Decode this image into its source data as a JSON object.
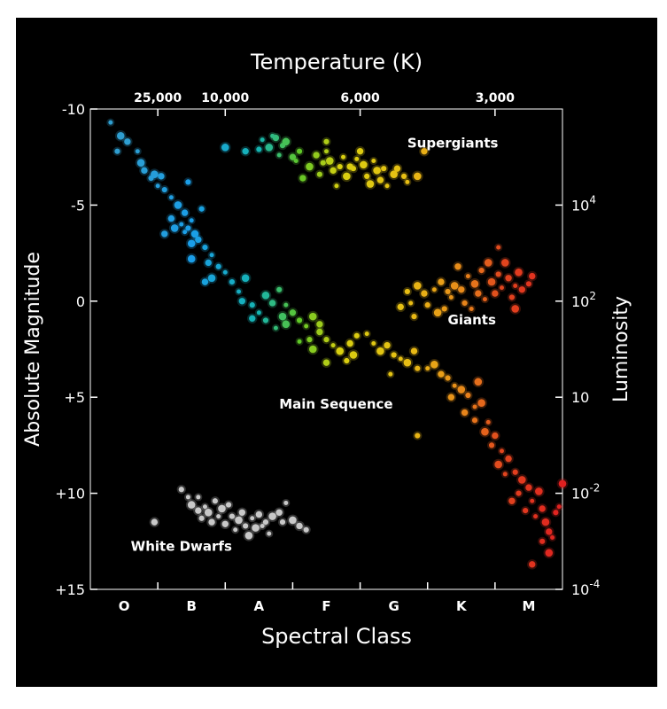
{
  "chart_data": {
    "type": "scatter",
    "title": "",
    "xlabel": "Spectral Class",
    "x2label": "Temperature (K)",
    "ylabel": "Absolute Magnitude",
    "y2label": "Luminosity",
    "categories": [
      "O",
      "B",
      "A",
      "F",
      "G",
      "K",
      "M"
    ],
    "xlim": [
      -0.5,
      6.5
    ],
    "ylim": [
      -10,
      15
    ],
    "y_ticks": [
      {
        "value": -10,
        "label": "-10"
      },
      {
        "value": -5,
        "label": "-5"
      },
      {
        "value": 0,
        "label": "0"
      },
      {
        "value": 5,
        "label": "+5"
      },
      {
        "value": 10,
        "label": "+10"
      },
      {
        "value": 15,
        "label": "+15"
      }
    ],
    "top_ticks": [
      {
        "x": 0.5,
        "label": "25,000"
      },
      {
        "x": 1.5,
        "label": "10,000"
      },
      {
        "x": 3.5,
        "label": "6,000"
      },
      {
        "x": 5.5,
        "label": "3,000"
      }
    ],
    "lum_ticks": [
      {
        "mag": -5,
        "base": "10",
        "exp": "4"
      },
      {
        "mag": 0,
        "base": "10",
        "exp": "2"
      },
      {
        "mag": 5,
        "base": "10",
        "exp": ""
      },
      {
        "mag": 10,
        "base": "10",
        "exp": "-2"
      },
      {
        "mag": 15,
        "base": "10",
        "exp": "-4"
      }
    ],
    "annotations": [
      {
        "text": "Supergiants",
        "x": 4.2,
        "mag": -8.0
      },
      {
        "text": "Giants",
        "x": 4.8,
        "mag": 1.2
      },
      {
        "text": "Main Sequence",
        "x": 2.3,
        "mag": 5.6
      },
      {
        "text": "White Dwarfs",
        "x": 0.1,
        "mag": 13.0
      }
    ],
    "colors": {
      "background": "#000000",
      "text": "#ffffff",
      "O": "#2f9ed0",
      "B": "#1a9ee8",
      "A": "#15b4b0",
      "F": "#6cc82a",
      "G": "#e8c010",
      "K": "#e88a1a",
      "M": "#e02020",
      "white_dwarf": "#c8c8c8"
    },
    "series": [
      {
        "name": "Main Sequence",
        "points": [
          [
            -0.2,
            -9.3
          ],
          [
            -0.05,
            -8.6
          ],
          [
            0.05,
            -8.3
          ],
          [
            -0.1,
            -7.8
          ],
          [
            0.2,
            -7.8
          ],
          [
            0.25,
            -7.2
          ],
          [
            0.3,
            -6.8
          ],
          [
            0.4,
            -6.4
          ],
          [
            0.5,
            -6.0
          ],
          [
            0.45,
            -6.6
          ],
          [
            0.55,
            -6.5
          ],
          [
            0.6,
            -5.8
          ],
          [
            0.7,
            -5.4
          ],
          [
            0.8,
            -5.0
          ],
          [
            0.9,
            -4.6
          ],
          [
            0.95,
            -6.2
          ],
          [
            0.85,
            -4.0
          ],
          [
            0.75,
            -3.8
          ],
          [
            0.7,
            -4.3
          ],
          [
            0.95,
            -3.8
          ],
          [
            1.0,
            -4.2
          ],
          [
            1.05,
            -3.5
          ],
          [
            1.1,
            -3.2
          ],
          [
            1.15,
            -4.8
          ],
          [
            0.9,
            -3.6
          ],
          [
            1.0,
            -3.0
          ],
          [
            0.6,
            -3.5
          ],
          [
            1.2,
            -2.8
          ],
          [
            1.3,
            -2.4
          ],
          [
            1.0,
            -2.2
          ],
          [
            1.25,
            -2.0
          ],
          [
            1.4,
            -1.8
          ],
          [
            1.5,
            -1.5
          ],
          [
            1.3,
            -1.2
          ],
          [
            1.2,
            -1.0
          ],
          [
            1.6,
            -1.0
          ],
          [
            1.7,
            -0.5
          ],
          [
            1.8,
            -1.2
          ],
          [
            1.75,
            0.0
          ],
          [
            1.9,
            0.2
          ],
          [
            2.0,
            0.6
          ],
          [
            2.1,
            -0.3
          ],
          [
            2.2,
            0.1
          ],
          [
            2.3,
            -0.6
          ],
          [
            2.4,
            0.2
          ],
          [
            2.35,
            0.8
          ],
          [
            1.9,
            0.9
          ],
          [
            2.1,
            1.0
          ],
          [
            2.25,
            1.4
          ],
          [
            2.4,
            1.2
          ],
          [
            2.5,
            0.6
          ],
          [
            2.6,
            1.0
          ],
          [
            2.7,
            1.3
          ],
          [
            2.8,
            0.8
          ],
          [
            2.9,
            1.6
          ],
          [
            2.75,
            2.0
          ],
          [
            2.6,
            2.1
          ],
          [
            2.8,
            2.5
          ],
          [
            2.9,
            1.2
          ],
          [
            3.0,
            2.0
          ],
          [
            3.1,
            2.3
          ],
          [
            3.2,
            2.6
          ],
          [
            3.35,
            2.2
          ],
          [
            3.45,
            1.8
          ],
          [
            3.6,
            1.7
          ],
          [
            3.4,
            2.8
          ],
          [
            3.0,
            3.2
          ],
          [
            3.3,
            3.1
          ],
          [
            3.7,
            2.2
          ],
          [
            3.8,
            2.6
          ],
          [
            3.9,
            2.3
          ],
          [
            4.0,
            2.8
          ],
          [
            4.1,
            3.0
          ],
          [
            4.2,
            3.2
          ],
          [
            4.3,
            2.6
          ],
          [
            4.35,
            3.5
          ],
          [
            4.5,
            3.5
          ],
          [
            4.6,
            3.3
          ],
          [
            4.7,
            3.8
          ],
          [
            4.8,
            4.0
          ],
          [
            4.9,
            4.4
          ],
          [
            5.0,
            4.6
          ],
          [
            4.85,
            5.0
          ],
          [
            5.1,
            4.9
          ],
          [
            5.2,
            5.5
          ],
          [
            5.3,
            5.3
          ],
          [
            5.05,
            5.8
          ],
          [
            5.2,
            6.2
          ],
          [
            5.4,
            6.3
          ],
          [
            5.35,
            6.8
          ],
          [
            5.5,
            7.0
          ],
          [
            5.45,
            7.5
          ],
          [
            5.6,
            7.8
          ],
          [
            5.55,
            8.5
          ],
          [
            5.7,
            8.2
          ],
          [
            5.8,
            8.9
          ],
          [
            5.65,
            9.0
          ],
          [
            5.9,
            9.3
          ],
          [
            6.0,
            9.7
          ],
          [
            5.85,
            10.0
          ],
          [
            6.05,
            10.4
          ],
          [
            6.15,
            9.9
          ],
          [
            6.2,
            10.8
          ],
          [
            5.95,
            10.9
          ],
          [
            6.1,
            11.2
          ],
          [
            6.25,
            11.5
          ],
          [
            6.3,
            12.0
          ],
          [
            6.2,
            12.5
          ],
          [
            6.35,
            12.3
          ],
          [
            6.3,
            13.1
          ],
          [
            6.05,
            13.7
          ],
          [
            6.4,
            11.0
          ],
          [
            6.45,
            10.7
          ],
          [
            6.5,
            9.5
          ],
          [
            5.75,
            10.4
          ],
          [
            4.35,
            7.0
          ],
          [
            3.95,
            3.8
          ],
          [
            5.25,
            4.2
          ]
        ]
      },
      {
        "name": "Supergiants",
        "points": [
          [
            1.5,
            -8.0
          ],
          [
            1.8,
            -7.8
          ],
          [
            2.0,
            -7.9
          ],
          [
            2.05,
            -8.4
          ],
          [
            2.15,
            -8.0
          ],
          [
            2.25,
            -8.5
          ],
          [
            2.35,
            -8.1
          ],
          [
            2.3,
            -7.6
          ],
          [
            2.4,
            -8.3
          ],
          [
            2.5,
            -7.5
          ],
          [
            2.6,
            -7.8
          ],
          [
            2.55,
            -7.3
          ],
          [
            2.75,
            -7.0
          ],
          [
            2.85,
            -7.6
          ],
          [
            2.95,
            -7.2
          ],
          [
            3.0,
            -7.8
          ],
          [
            3.05,
            -7.3
          ],
          [
            3.1,
            -6.8
          ],
          [
            3.2,
            -7.0
          ],
          [
            3.25,
            -7.5
          ],
          [
            3.3,
            -6.5
          ],
          [
            3.35,
            -7.0
          ],
          [
            3.4,
            -6.9
          ],
          [
            3.45,
            -7.4
          ],
          [
            3.55,
            -7.1
          ],
          [
            3.5,
            -7.8
          ],
          [
            3.6,
            -6.5
          ],
          [
            3.7,
            -7.3
          ],
          [
            3.75,
            -6.8
          ],
          [
            3.8,
            -6.3
          ],
          [
            3.85,
            -6.9
          ],
          [
            3.9,
            -6.0
          ],
          [
            4.0,
            -6.6
          ],
          [
            4.05,
            -6.9
          ],
          [
            4.15,
            -6.5
          ],
          [
            4.2,
            -6.2
          ],
          [
            4.35,
            -6.5
          ],
          [
            2.65,
            -6.4
          ],
          [
            2.9,
            -6.6
          ],
          [
            3.15,
            -6.0
          ],
          [
            3.65,
            -6.1
          ],
          [
            4.45,
            -7.8
          ],
          [
            3.0,
            -8.3
          ],
          [
            2.2,
            -8.6
          ]
        ]
      },
      {
        "name": "Giants",
        "points": [
          [
            4.1,
            0.3
          ],
          [
            4.2,
            -0.5
          ],
          [
            4.25,
            0.1
          ],
          [
            4.35,
            -0.8
          ],
          [
            4.45,
            -0.4
          ],
          [
            4.5,
            0.2
          ],
          [
            4.6,
            -0.6
          ],
          [
            4.65,
            0.6
          ],
          [
            4.7,
            -1.0
          ],
          [
            4.8,
            -0.5
          ],
          [
            4.85,
            -0.2
          ],
          [
            4.9,
            -0.8
          ],
          [
            5.0,
            -0.6
          ],
          [
            5.05,
            0.1
          ],
          [
            5.1,
            -1.3
          ],
          [
            5.2,
            -0.9
          ],
          [
            5.25,
            -0.4
          ],
          [
            5.3,
            -1.6
          ],
          [
            5.35,
            -0.1
          ],
          [
            5.45,
            -1.0
          ],
          [
            5.5,
            -0.4
          ],
          [
            5.55,
            -1.4
          ],
          [
            5.6,
            -0.7
          ],
          [
            5.65,
            -2.0
          ],
          [
            5.7,
            -1.2
          ],
          [
            5.75,
            -0.2
          ],
          [
            5.8,
            -0.8
          ],
          [
            5.85,
            -1.5
          ],
          [
            5.9,
            -0.6
          ],
          [
            6.0,
            -0.9
          ],
          [
            5.55,
            -2.8
          ],
          [
            5.4,
            -2.0
          ],
          [
            4.95,
            -1.8
          ],
          [
            4.75,
            0.4
          ],
          [
            5.15,
            0.4
          ],
          [
            5.8,
            0.4
          ],
          [
            6.05,
            -1.3
          ],
          [
            4.3,
            0.8
          ]
        ]
      },
      {
        "name": "White Dwarfs",
        "points": [
          [
            0.85,
            9.8
          ],
          [
            0.95,
            10.2
          ],
          [
            1.0,
            10.6
          ],
          [
            1.1,
            10.9
          ],
          [
            1.15,
            11.3
          ],
          [
            1.2,
            10.7
          ],
          [
            1.25,
            11.0
          ],
          [
            1.3,
            11.5
          ],
          [
            1.35,
            10.4
          ],
          [
            1.4,
            11.2
          ],
          [
            1.45,
            10.8
          ],
          [
            1.5,
            11.6
          ],
          [
            1.55,
            10.6
          ],
          [
            1.65,
            11.9
          ],
          [
            1.7,
            11.4
          ],
          [
            1.75,
            11.0
          ],
          [
            1.8,
            11.7
          ],
          [
            1.9,
            11.3
          ],
          [
            1.95,
            11.8
          ],
          [
            2.0,
            11.1
          ],
          [
            2.1,
            11.5
          ],
          [
            2.15,
            12.1
          ],
          [
            2.2,
            11.2
          ],
          [
            2.3,
            11.0
          ],
          [
            2.35,
            11.5
          ],
          [
            2.4,
            10.5
          ],
          [
            2.5,
            11.4
          ],
          [
            2.6,
            11.7
          ],
          [
            2.7,
            11.9
          ],
          [
            1.1,
            10.2
          ],
          [
            1.85,
            12.2
          ],
          [
            0.45,
            11.5
          ],
          [
            1.6,
            11.2
          ],
          [
            2.05,
            11.7
          ]
        ]
      }
    ]
  }
}
